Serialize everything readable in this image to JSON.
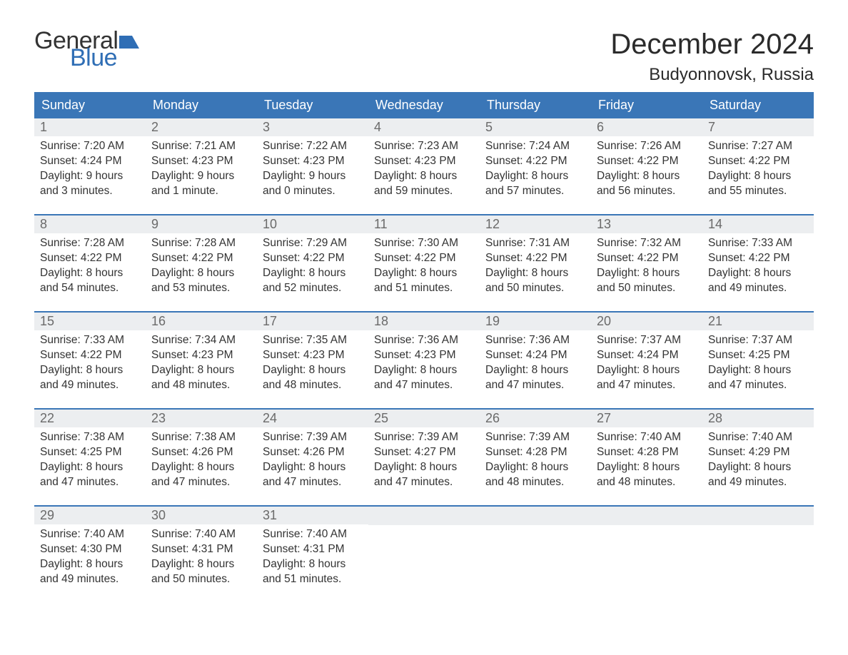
{
  "logo": {
    "word1": "General",
    "word2": "Blue",
    "text_color": "#333333",
    "accent_color": "#2f6eb5"
  },
  "title": "December 2024",
  "location": "Budyonnovsk, Russia",
  "colors": {
    "header_bg": "#3a76b7",
    "header_text": "#ffffff",
    "daynum_bg": "#eceef0",
    "daynum_text": "#6a6a6a",
    "body_text": "#333333",
    "week_border": "#3a76b7",
    "page_bg": "#ffffff"
  },
  "fonts": {
    "title_size_pt": 30,
    "location_size_pt": 18,
    "weekday_size_pt": 14,
    "body_size_pt": 11.5
  },
  "weekdays": [
    "Sunday",
    "Monday",
    "Tuesday",
    "Wednesday",
    "Thursday",
    "Friday",
    "Saturday"
  ],
  "weeks": [
    [
      {
        "n": "1",
        "sr": "Sunrise: 7:20 AM",
        "ss": "Sunset: 4:24 PM",
        "d1": "Daylight: 9 hours",
        "d2": "and 3 minutes."
      },
      {
        "n": "2",
        "sr": "Sunrise: 7:21 AM",
        "ss": "Sunset: 4:23 PM",
        "d1": "Daylight: 9 hours",
        "d2": "and 1 minute."
      },
      {
        "n": "3",
        "sr": "Sunrise: 7:22 AM",
        "ss": "Sunset: 4:23 PM",
        "d1": "Daylight: 9 hours",
        "d2": "and 0 minutes."
      },
      {
        "n": "4",
        "sr": "Sunrise: 7:23 AM",
        "ss": "Sunset: 4:23 PM",
        "d1": "Daylight: 8 hours",
        "d2": "and 59 minutes."
      },
      {
        "n": "5",
        "sr": "Sunrise: 7:24 AM",
        "ss": "Sunset: 4:22 PM",
        "d1": "Daylight: 8 hours",
        "d2": "and 57 minutes."
      },
      {
        "n": "6",
        "sr": "Sunrise: 7:26 AM",
        "ss": "Sunset: 4:22 PM",
        "d1": "Daylight: 8 hours",
        "d2": "and 56 minutes."
      },
      {
        "n": "7",
        "sr": "Sunrise: 7:27 AM",
        "ss": "Sunset: 4:22 PM",
        "d1": "Daylight: 8 hours",
        "d2": "and 55 minutes."
      }
    ],
    [
      {
        "n": "8",
        "sr": "Sunrise: 7:28 AM",
        "ss": "Sunset: 4:22 PM",
        "d1": "Daylight: 8 hours",
        "d2": "and 54 minutes."
      },
      {
        "n": "9",
        "sr": "Sunrise: 7:28 AM",
        "ss": "Sunset: 4:22 PM",
        "d1": "Daylight: 8 hours",
        "d2": "and 53 minutes."
      },
      {
        "n": "10",
        "sr": "Sunrise: 7:29 AM",
        "ss": "Sunset: 4:22 PM",
        "d1": "Daylight: 8 hours",
        "d2": "and 52 minutes."
      },
      {
        "n": "11",
        "sr": "Sunrise: 7:30 AM",
        "ss": "Sunset: 4:22 PM",
        "d1": "Daylight: 8 hours",
        "d2": "and 51 minutes."
      },
      {
        "n": "12",
        "sr": "Sunrise: 7:31 AM",
        "ss": "Sunset: 4:22 PM",
        "d1": "Daylight: 8 hours",
        "d2": "and 50 minutes."
      },
      {
        "n": "13",
        "sr": "Sunrise: 7:32 AM",
        "ss": "Sunset: 4:22 PM",
        "d1": "Daylight: 8 hours",
        "d2": "and 50 minutes."
      },
      {
        "n": "14",
        "sr": "Sunrise: 7:33 AM",
        "ss": "Sunset: 4:22 PM",
        "d1": "Daylight: 8 hours",
        "d2": "and 49 minutes."
      }
    ],
    [
      {
        "n": "15",
        "sr": "Sunrise: 7:33 AM",
        "ss": "Sunset: 4:22 PM",
        "d1": "Daylight: 8 hours",
        "d2": "and 49 minutes."
      },
      {
        "n": "16",
        "sr": "Sunrise: 7:34 AM",
        "ss": "Sunset: 4:23 PM",
        "d1": "Daylight: 8 hours",
        "d2": "and 48 minutes."
      },
      {
        "n": "17",
        "sr": "Sunrise: 7:35 AM",
        "ss": "Sunset: 4:23 PM",
        "d1": "Daylight: 8 hours",
        "d2": "and 48 minutes."
      },
      {
        "n": "18",
        "sr": "Sunrise: 7:36 AM",
        "ss": "Sunset: 4:23 PM",
        "d1": "Daylight: 8 hours",
        "d2": "and 47 minutes."
      },
      {
        "n": "19",
        "sr": "Sunrise: 7:36 AM",
        "ss": "Sunset: 4:24 PM",
        "d1": "Daylight: 8 hours",
        "d2": "and 47 minutes."
      },
      {
        "n": "20",
        "sr": "Sunrise: 7:37 AM",
        "ss": "Sunset: 4:24 PM",
        "d1": "Daylight: 8 hours",
        "d2": "and 47 minutes."
      },
      {
        "n": "21",
        "sr": "Sunrise: 7:37 AM",
        "ss": "Sunset: 4:25 PM",
        "d1": "Daylight: 8 hours",
        "d2": "and 47 minutes."
      }
    ],
    [
      {
        "n": "22",
        "sr": "Sunrise: 7:38 AM",
        "ss": "Sunset: 4:25 PM",
        "d1": "Daylight: 8 hours",
        "d2": "and 47 minutes."
      },
      {
        "n": "23",
        "sr": "Sunrise: 7:38 AM",
        "ss": "Sunset: 4:26 PM",
        "d1": "Daylight: 8 hours",
        "d2": "and 47 minutes."
      },
      {
        "n": "24",
        "sr": "Sunrise: 7:39 AM",
        "ss": "Sunset: 4:26 PM",
        "d1": "Daylight: 8 hours",
        "d2": "and 47 minutes."
      },
      {
        "n": "25",
        "sr": "Sunrise: 7:39 AM",
        "ss": "Sunset: 4:27 PM",
        "d1": "Daylight: 8 hours",
        "d2": "and 47 minutes."
      },
      {
        "n": "26",
        "sr": "Sunrise: 7:39 AM",
        "ss": "Sunset: 4:28 PM",
        "d1": "Daylight: 8 hours",
        "d2": "and 48 minutes."
      },
      {
        "n": "27",
        "sr": "Sunrise: 7:40 AM",
        "ss": "Sunset: 4:28 PM",
        "d1": "Daylight: 8 hours",
        "d2": "and 48 minutes."
      },
      {
        "n": "28",
        "sr": "Sunrise: 7:40 AM",
        "ss": "Sunset: 4:29 PM",
        "d1": "Daylight: 8 hours",
        "d2": "and 49 minutes."
      }
    ],
    [
      {
        "n": "29",
        "sr": "Sunrise: 7:40 AM",
        "ss": "Sunset: 4:30 PM",
        "d1": "Daylight: 8 hours",
        "d2": "and 49 minutes."
      },
      {
        "n": "30",
        "sr": "Sunrise: 7:40 AM",
        "ss": "Sunset: 4:31 PM",
        "d1": "Daylight: 8 hours",
        "d2": "and 50 minutes."
      },
      {
        "n": "31",
        "sr": "Sunrise: 7:40 AM",
        "ss": "Sunset: 4:31 PM",
        "d1": "Daylight: 8 hours",
        "d2": "and 51 minutes."
      },
      null,
      null,
      null,
      null
    ]
  ]
}
